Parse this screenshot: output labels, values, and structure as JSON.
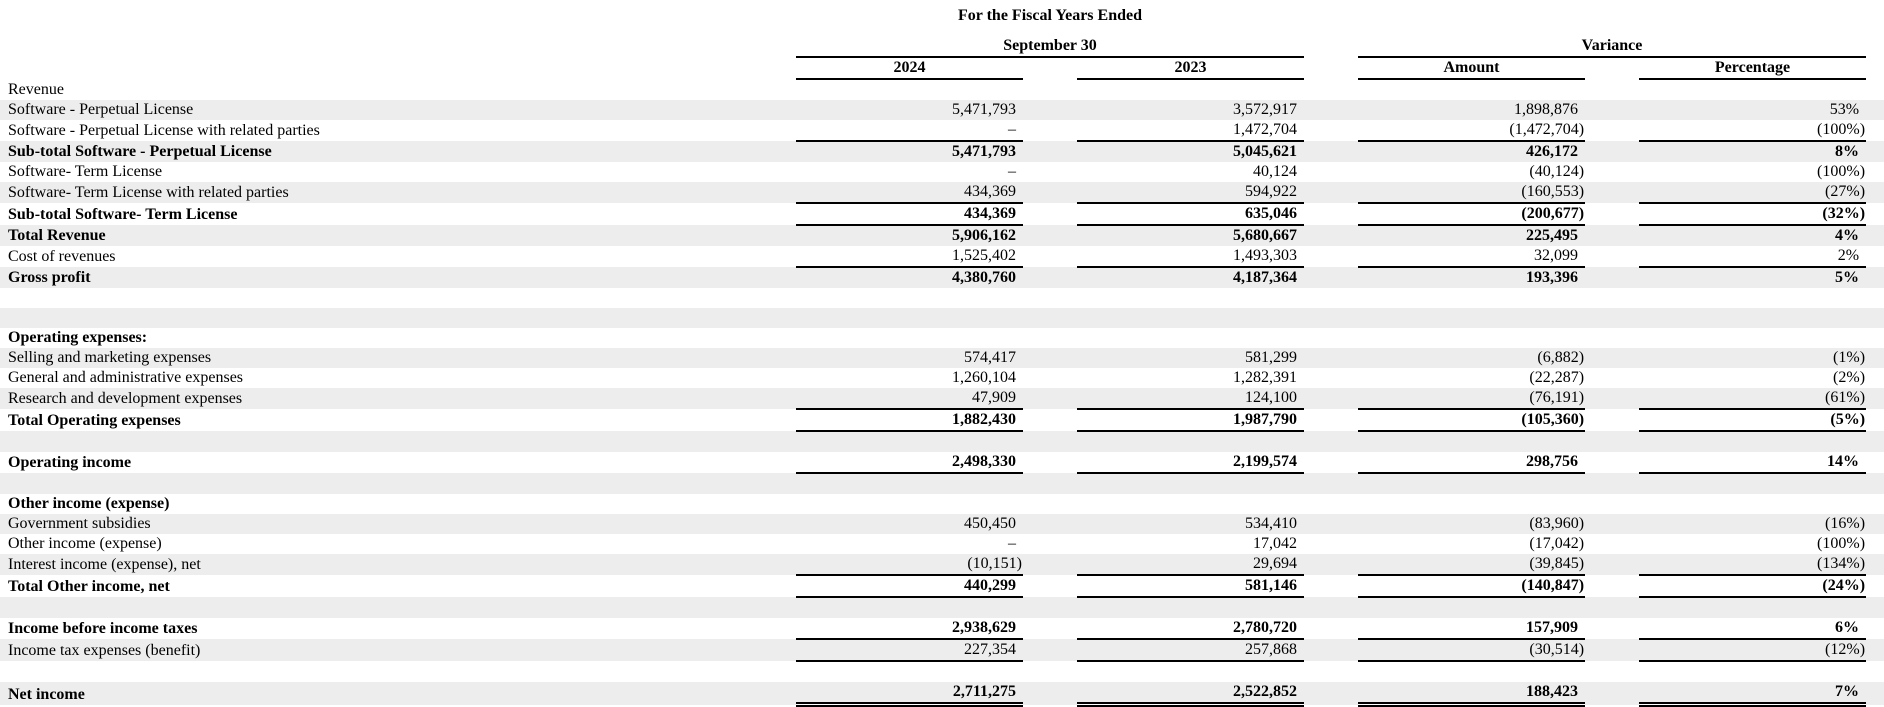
{
  "title_group": {
    "line1": "For the Fiscal Years Ended",
    "line2": "September 30",
    "variance": "Variance"
  },
  "columns": [
    "2024",
    "2023",
    "Amount",
    "Percentage"
  ],
  "rows": [
    {
      "label": "Revenue",
      "bold": false,
      "values": [
        "",
        "",
        "",
        ""
      ],
      "rule": ""
    },
    {
      "label": "Software - Perpetual License",
      "bold": false,
      "values": [
        "5,471,793",
        "3,572,917",
        "1,898,876",
        "53%"
      ],
      "rule": ""
    },
    {
      "label": "Software - Perpetual License with related parties",
      "bold": false,
      "values": [
        "–",
        "1,472,704",
        "(1,472,704)",
        "(100%)"
      ],
      "rule": "single"
    },
    {
      "label": "Sub-total Software - Perpetual License",
      "bold": true,
      "values": [
        "5,471,793",
        "5,045,621",
        "426,172",
        "8%"
      ],
      "rule": ""
    },
    {
      "label": "Software- Term License",
      "bold": false,
      "values": [
        "–",
        "40,124",
        "(40,124)",
        "(100%)"
      ],
      "rule": ""
    },
    {
      "label": "Software- Term License with related parties",
      "bold": false,
      "values": [
        "434,369",
        "594,922",
        "(160,553)",
        "(27%)"
      ],
      "rule": "single"
    },
    {
      "label": "Sub-total Software- Term License",
      "bold": true,
      "values": [
        "434,369",
        "635,046",
        "(200,677)",
        "(32%)"
      ],
      "rule": "single"
    },
    {
      "label": "Total Revenue",
      "bold": true,
      "values": [
        "5,906,162",
        "5,680,667",
        "225,495",
        "4%"
      ],
      "rule": ""
    },
    {
      "label": "Cost of revenues",
      "bold": false,
      "values": [
        "1,525,402",
        "1,493,303",
        "32,099",
        "2%"
      ],
      "rule": "single"
    },
    {
      "label": "Gross profit",
      "bold": true,
      "values": [
        "4,380,760",
        "4,187,364",
        "193,396",
        "5%"
      ],
      "rule": ""
    },
    {
      "blank": true
    },
    {
      "blank": true
    },
    {
      "label": "Operating expenses:",
      "bold": true,
      "values": [
        "",
        "",
        "",
        ""
      ],
      "rule": ""
    },
    {
      "label": "Selling and marketing expenses",
      "bold": false,
      "values": [
        "574,417",
        "581,299",
        "(6,882)",
        "(1%)"
      ],
      "rule": ""
    },
    {
      "label": "General and administrative expenses",
      "bold": false,
      "values": [
        "1,260,104",
        "1,282,391",
        "(22,287)",
        "(2%)"
      ],
      "rule": ""
    },
    {
      "label": "Research and development expenses",
      "bold": false,
      "values": [
        "47,909",
        "124,100",
        "(76,191)",
        "(61%)"
      ],
      "rule": "single"
    },
    {
      "label": "Total Operating expenses",
      "bold": true,
      "values": [
        "1,882,430",
        "1,987,790",
        "(105,360)",
        "(5%)"
      ],
      "rule": "single"
    },
    {
      "blank": true
    },
    {
      "label": "Operating income",
      "bold": true,
      "values": [
        "2,498,330",
        "2,199,574",
        "298,756",
        "14%"
      ],
      "rule": "single"
    },
    {
      "blank": true
    },
    {
      "label": "Other income (expense)",
      "bold": true,
      "values": [
        "",
        "",
        "",
        ""
      ],
      "rule": ""
    },
    {
      "label": "Government subsidies",
      "bold": false,
      "values": [
        "450,450",
        "534,410",
        "(83,960)",
        "(16%)"
      ],
      "rule": ""
    },
    {
      "label": "Other income (expense)",
      "bold": false,
      "values": [
        "–",
        "17,042",
        "(17,042)",
        "(100%)"
      ],
      "rule": ""
    },
    {
      "label": "Interest income (expense), net",
      "bold": false,
      "values": [
        "(10,151)",
        "29,694",
        "(39,845)",
        "(134%)"
      ],
      "rule": "single"
    },
    {
      "label": "Total Other income, net",
      "bold": true,
      "values": [
        "440,299",
        "581,146",
        "(140,847)",
        "(24%)"
      ],
      "rule": "single"
    },
    {
      "blank": true
    },
    {
      "label": "Income before income taxes",
      "bold": true,
      "values": [
        "2,938,629",
        "2,780,720",
        "157,909",
        "6%"
      ],
      "rule": "single"
    },
    {
      "label": "Income tax expenses (benefit)",
      "bold": false,
      "values": [
        "227,354",
        "257,868",
        "(30,514)",
        "(12%)"
      ],
      "rule": "single"
    },
    {
      "blank": true
    },
    {
      "label": "Net income",
      "bold": true,
      "values": [
        "2,711,275",
        "2,522,852",
        "188,423",
        "7%"
      ],
      "rule": "double"
    }
  ]
}
